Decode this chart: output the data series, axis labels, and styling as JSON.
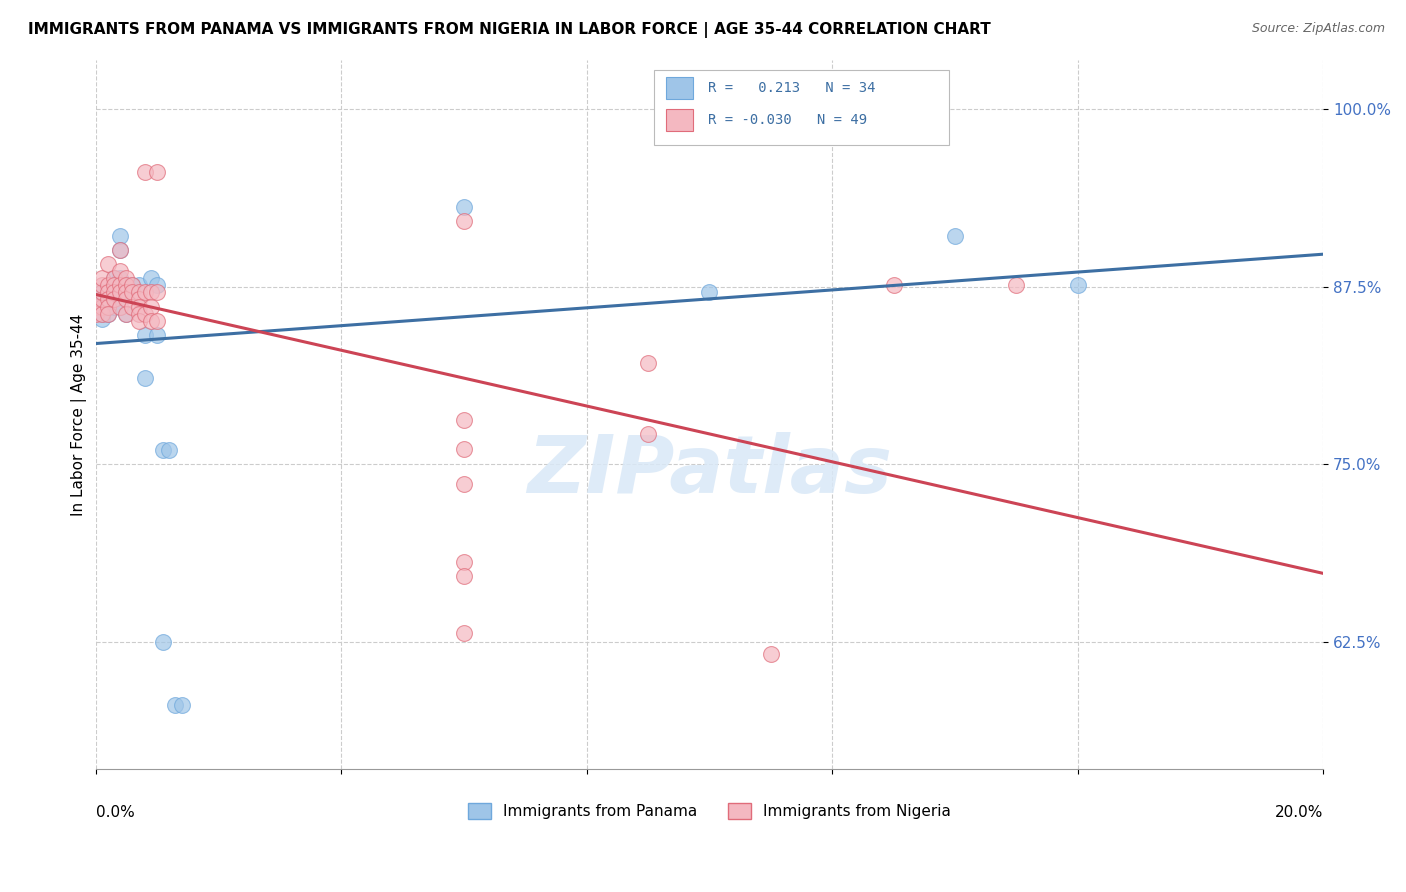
{
  "title": "IMMIGRANTS FROM PANAMA VS IMMIGRANTS FROM NIGERIA IN LABOR FORCE | AGE 35-44 CORRELATION CHART",
  "source": "Source: ZipAtlas.com",
  "ylabel": "In Labor Force | Age 35-44",
  "ytick_labels": [
    "100.0%",
    "87.5%",
    "75.0%",
    "62.5%"
  ],
  "ytick_values": [
    1.0,
    0.875,
    0.75,
    0.625
  ],
  "xlim": [
    0.0,
    0.2
  ],
  "ylim": [
    0.535,
    1.035
  ],
  "panama_color": "#9fc5e8",
  "panama_edge_color": "#6fa8dc",
  "nigeria_color": "#f4b8c1",
  "nigeria_edge_color": "#e06c7a",
  "reg_panama_color": "#3d6fa3",
  "reg_nigeria_color": "#cc4455",
  "watermark_color": "#d9e8f7",
  "grid_color": "#cccccc",
  "panama_scatter": [
    [
      0.0,
      0.862
    ],
    [
      0.001,
      0.856
    ],
    [
      0.001,
      0.852
    ],
    [
      0.001,
      0.871
    ],
    [
      0.002,
      0.861
    ],
    [
      0.002,
      0.856
    ],
    [
      0.002,
      0.861
    ],
    [
      0.002,
      0.866
    ],
    [
      0.003,
      0.881
    ],
    [
      0.003,
      0.876
    ],
    [
      0.003,
      0.871
    ],
    [
      0.003,
      0.861
    ],
    [
      0.004,
      0.911
    ],
    [
      0.004,
      0.901
    ],
    [
      0.004,
      0.881
    ],
    [
      0.004,
      0.871
    ],
    [
      0.004,
      0.861
    ],
    [
      0.005,
      0.871
    ],
    [
      0.005,
      0.856
    ],
    [
      0.006,
      0.876
    ],
    [
      0.007,
      0.876
    ],
    [
      0.008,
      0.841
    ],
    [
      0.008,
      0.811
    ],
    [
      0.009,
      0.881
    ],
    [
      0.01,
      0.876
    ],
    [
      0.01,
      0.841
    ],
    [
      0.011,
      0.625
    ],
    [
      0.011,
      0.76
    ],
    [
      0.012,
      0.76
    ],
    [
      0.013,
      0.58
    ],
    [
      0.014,
      0.58
    ],
    [
      0.06,
      0.931
    ],
    [
      0.1,
      0.871
    ],
    [
      0.14,
      0.911
    ],
    [
      0.16,
      0.876
    ]
  ],
  "nigeria_scatter": [
    [
      0.0,
      0.861
    ],
    [
      0.0,
      0.856
    ],
    [
      0.001,
      0.861
    ],
    [
      0.001,
      0.856
    ],
    [
      0.001,
      0.866
    ],
    [
      0.001,
      0.871
    ],
    [
      0.001,
      0.876
    ],
    [
      0.001,
      0.881
    ],
    [
      0.002,
      0.891
    ],
    [
      0.002,
      0.876
    ],
    [
      0.002,
      0.871
    ],
    [
      0.002,
      0.866
    ],
    [
      0.002,
      0.861
    ],
    [
      0.002,
      0.856
    ],
    [
      0.003,
      0.881
    ],
    [
      0.003,
      0.876
    ],
    [
      0.003,
      0.871
    ],
    [
      0.003,
      0.866
    ],
    [
      0.004,
      0.901
    ],
    [
      0.004,
      0.886
    ],
    [
      0.004,
      0.876
    ],
    [
      0.004,
      0.871
    ],
    [
      0.004,
      0.861
    ],
    [
      0.005,
      0.881
    ],
    [
      0.005,
      0.876
    ],
    [
      0.005,
      0.871
    ],
    [
      0.005,
      0.866
    ],
    [
      0.005,
      0.856
    ],
    [
      0.006,
      0.876
    ],
    [
      0.006,
      0.871
    ],
    [
      0.006,
      0.861
    ],
    [
      0.007,
      0.871
    ],
    [
      0.007,
      0.866
    ],
    [
      0.007,
      0.861
    ],
    [
      0.007,
      0.856
    ],
    [
      0.007,
      0.851
    ],
    [
      0.008,
      0.956
    ],
    [
      0.008,
      0.871
    ],
    [
      0.008,
      0.856
    ],
    [
      0.009,
      0.871
    ],
    [
      0.009,
      0.861
    ],
    [
      0.009,
      0.851
    ],
    [
      0.01,
      0.956
    ],
    [
      0.01,
      0.871
    ],
    [
      0.01,
      0.851
    ],
    [
      0.06,
      0.921
    ],
    [
      0.06,
      0.781
    ],
    [
      0.06,
      0.761
    ],
    [
      0.06,
      0.736
    ],
    [
      0.06,
      0.681
    ],
    [
      0.06,
      0.671
    ],
    [
      0.06,
      0.631
    ],
    [
      0.09,
      0.821
    ],
    [
      0.09,
      0.771
    ],
    [
      0.11,
      0.616
    ],
    [
      0.13,
      0.876
    ],
    [
      0.15,
      0.876
    ]
  ]
}
